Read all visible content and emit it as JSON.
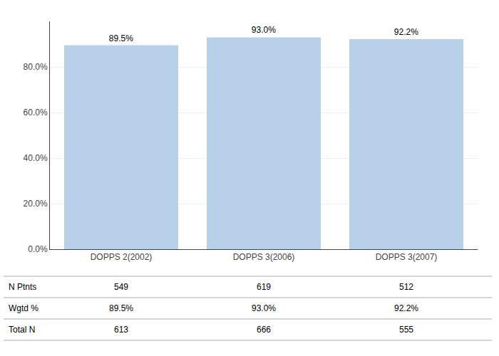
{
  "chart_data": {
    "type": "bar",
    "categories": [
      "DOPPS 2(2002)",
      "DOPPS 3(2006)",
      "DOPPS 3(2007)"
    ],
    "values": [
      89.5,
      93.0,
      92.2
    ],
    "value_labels": [
      "89.5%",
      "93.0%",
      "92.2%"
    ],
    "data_labels": true,
    "color": "#b8cfe8",
    "ylim": [
      0,
      100
    ],
    "yticks": [
      {
        "value": 0,
        "label": "0.0%"
      },
      {
        "value": 20,
        "label": "20.0%"
      },
      {
        "value": 40,
        "label": "40.0%"
      },
      {
        "value": 60,
        "label": "60.0%"
      },
      {
        "value": 80,
        "label": "80.0%"
      }
    ],
    "grid": true,
    "table": [
      {
        "name": "N Ptnts",
        "values": [
          549,
          619,
          512
        ]
      },
      {
        "name": "Wgtd %",
        "values": [
          89.5,
          93.0,
          92.2
        ],
        "value_labels": [
          "89.5%",
          "93.0%",
          "92.2%"
        ]
      },
      {
        "name": "Total N",
        "values": [
          613,
          666,
          555
        ]
      }
    ]
  }
}
